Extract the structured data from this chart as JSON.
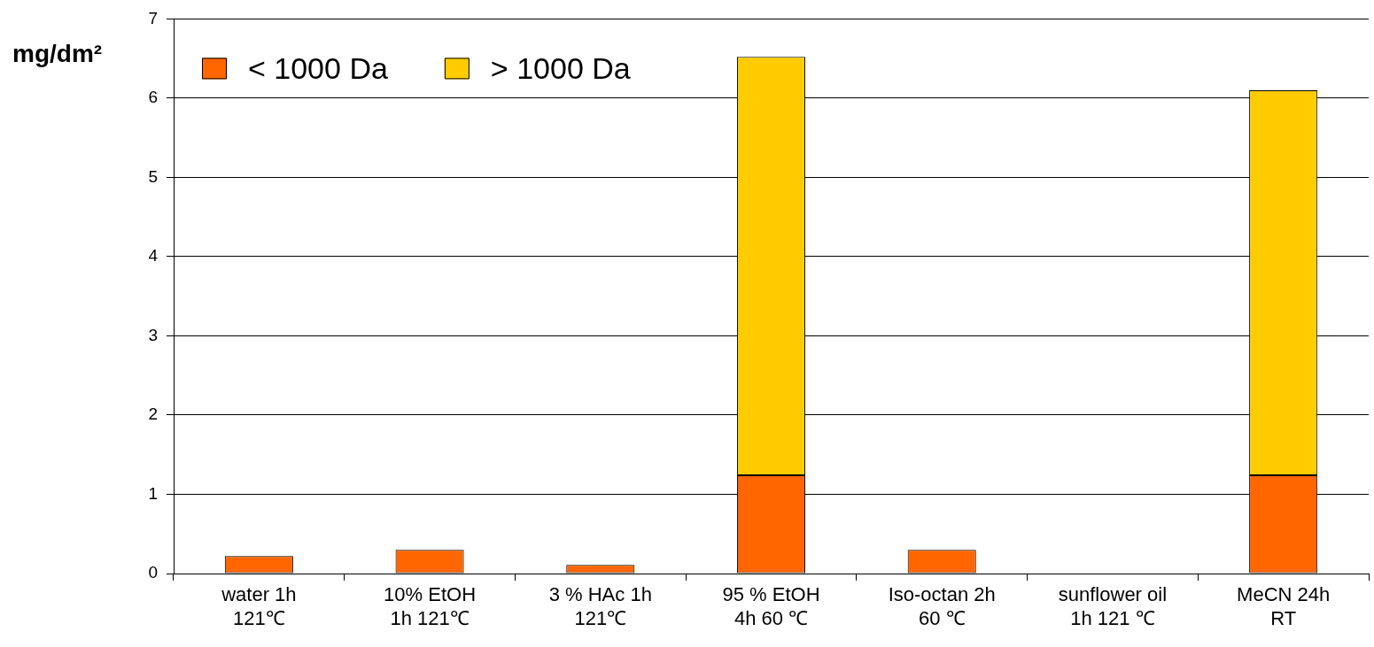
{
  "chart_data": {
    "type": "bar",
    "stacked": true,
    "ylabel": "mg/dm²",
    "categories": [
      "water 1h\n121℃",
      "10% EtOH\n1h 121℃",
      "3 % HAc 1h\n121℃",
      "95 % EtOH\n4h 60 ℃",
      "Iso-octan 2h\n60 ℃",
      "sunflower oil\n1h 121 ℃",
      "MeCN 24h\nRT"
    ],
    "series": [
      {
        "name": "< 1000 Da",
        "color": "#ff6600",
        "values": [
          0.22,
          0.3,
          0.11,
          1.24,
          0.3,
          0,
          1.24
        ]
      },
      {
        "name": "> 1000 Da",
        "color": "#ffcc00",
        "values": [
          0,
          0,
          0,
          5.28,
          0,
          0,
          4.86
        ]
      }
    ],
    "ylim": [
      0,
      7
    ],
    "yticks": [
      0,
      1,
      2,
      3,
      4,
      5,
      6,
      7
    ],
    "grid": "y",
    "legend": "top left"
  }
}
